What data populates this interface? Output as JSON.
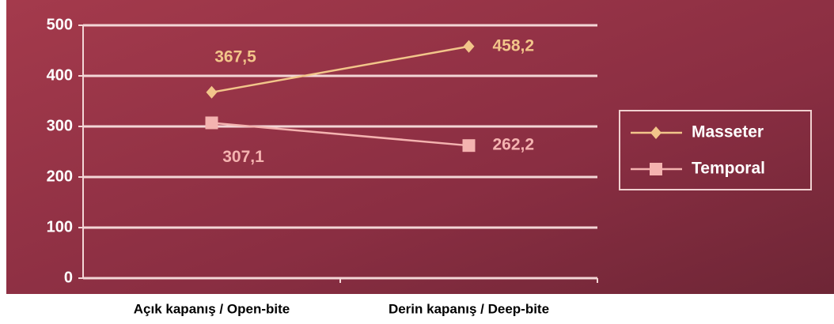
{
  "chart_data": {
    "type": "line",
    "categories": [
      "Açık kapanış / Open-bite",
      "Derin kapanış / Deep-bite"
    ],
    "series": [
      {
        "name": "Masseter",
        "color": "#f2c58a",
        "marker": "diamond",
        "values": [
          367.5,
          458.2
        ],
        "value_labels": [
          "367,5",
          "458,2"
        ]
      },
      {
        "name": "Temporal",
        "color": "#f4b3b0",
        "marker": "square",
        "values": [
          307.1,
          262.2
        ],
        "value_labels": [
          "307,1",
          "262,2"
        ]
      }
    ],
    "ylim": [
      0,
      500
    ],
    "yticks": [
      0,
      100,
      200,
      300,
      400,
      500
    ],
    "grid": true,
    "legend": "right"
  }
}
